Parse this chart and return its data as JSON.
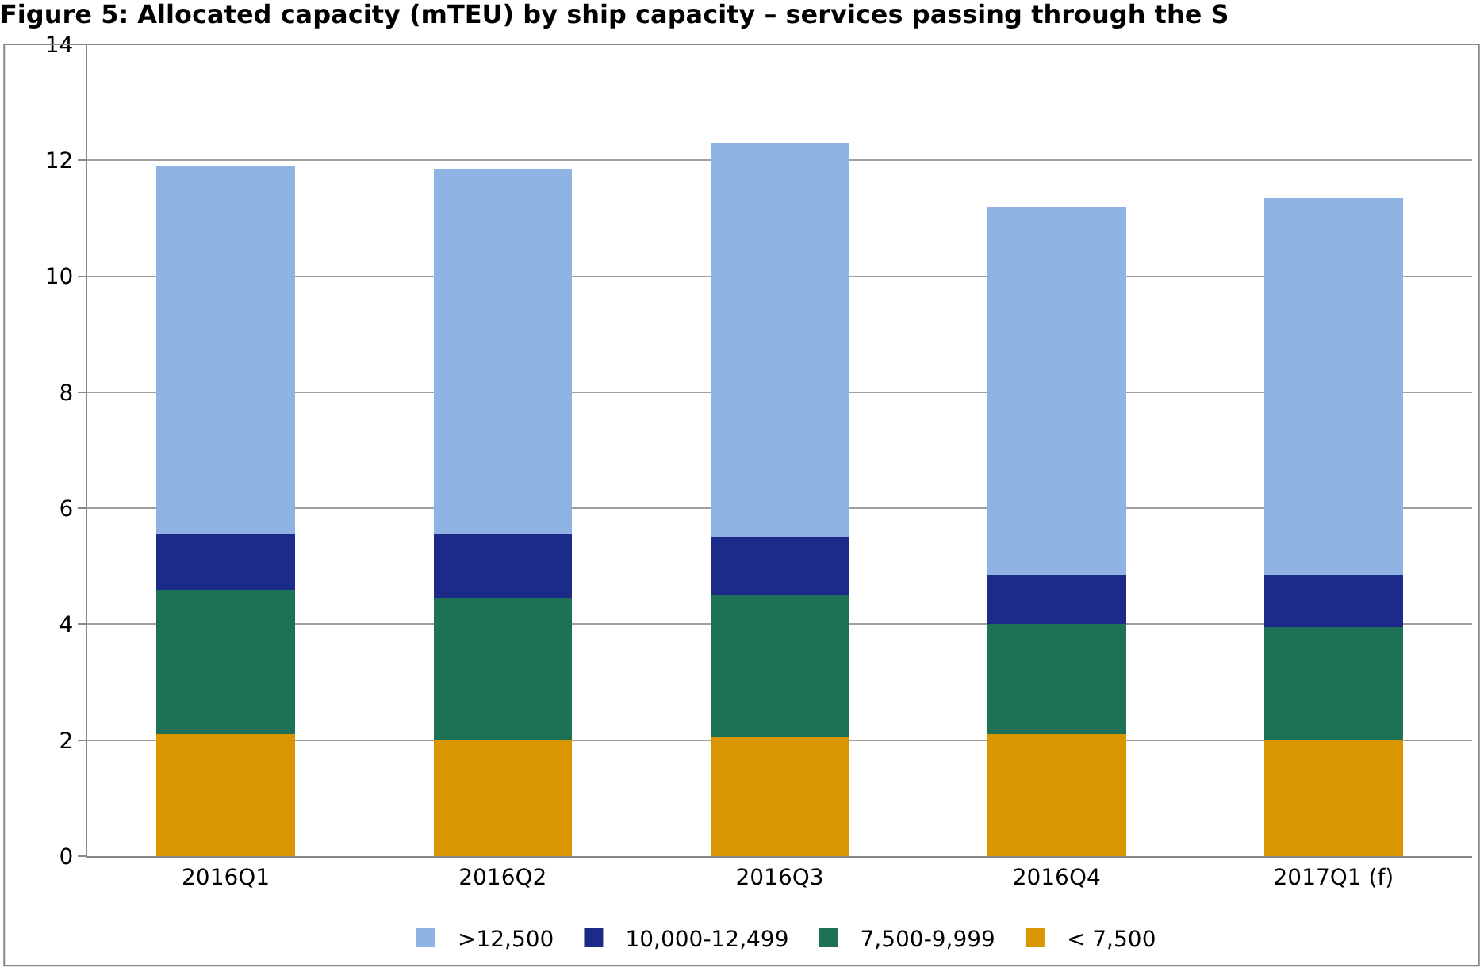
{
  "chart_data": {
    "type": "bar",
    "stacked": true,
    "title": "Figure 5: Allocated capacity (mTEU) by ship capacity – services passing through the S",
    "categories": [
      "2016Q1",
      "2016Q2",
      "2016Q3",
      "2016Q4",
      "2017Q1 (f)"
    ],
    "series": [
      {
        "name": "< 7,500",
        "color": "#d99600",
        "values": [
          2.1,
          2.0,
          2.05,
          2.1,
          2.0
        ]
      },
      {
        "name": "7,500-9,999",
        "color": "#1d7157",
        "values": [
          2.5,
          2.45,
          2.45,
          1.9,
          1.95
        ]
      },
      {
        "name": "10,000-12,499",
        "color": "#1c2a8a",
        "values": [
          0.95,
          1.1,
          1.0,
          0.85,
          0.9
        ]
      },
      {
        "name": ">12,500",
        "color": "#8fb3e3",
        "values": [
          6.35,
          6.3,
          6.8,
          6.35,
          6.5
        ]
      }
    ],
    "ylim": [
      0,
      14
    ],
    "yticks": [
      0,
      2,
      4,
      6,
      8,
      10,
      12,
      14
    ],
    "grid": "y",
    "legend": "bottom"
  }
}
